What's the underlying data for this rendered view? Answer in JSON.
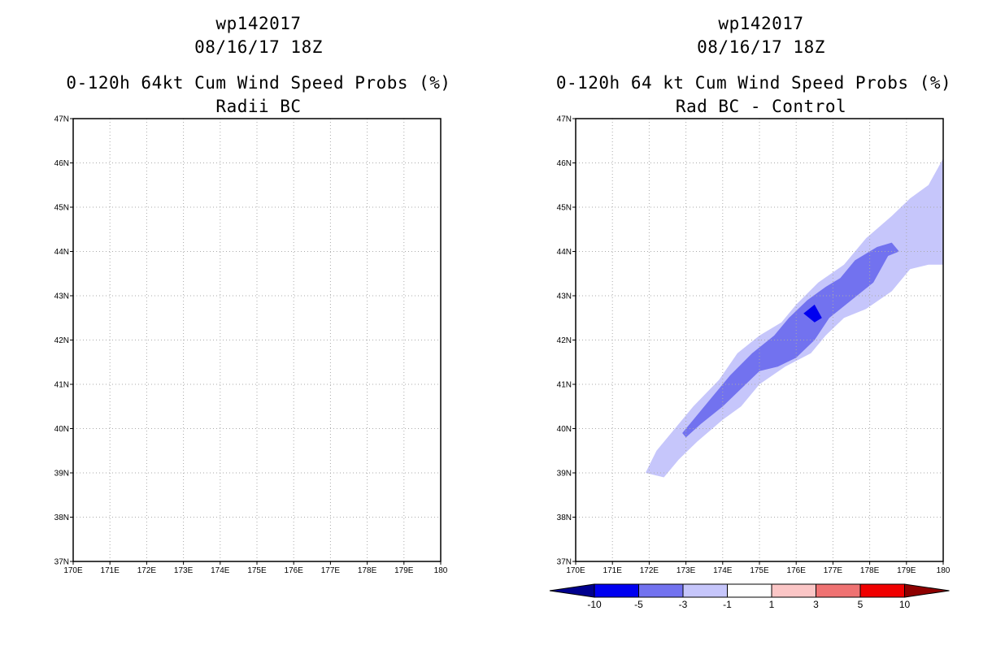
{
  "panels": [
    {
      "title_line1": "wp142017",
      "title_line2": "08/16/17 18Z",
      "title_line3": "0-120h 64kt Cum Wind Speed Probs (%)",
      "title_line4": "Radii BC"
    },
    {
      "title_line1": "wp142017",
      "title_line2": "08/16/17 18Z",
      "title_line3": "0-120h 64 kt Cum Wind Speed Probs (%)",
      "title_line4": "Rad BC - Control"
    }
  ],
  "colors": {
    "grid": "#aaaaaa",
    "frame": "#000000",
    "level_neg1_neg3": "#c6c6fb",
    "level_neg3_neg5": "#7272ef",
    "level_neg5_neg10": "#0000f0"
  },
  "chart_data": [
    {
      "type": "map",
      "title": "0-120h 64kt Cum Wind Speed Probs (%)",
      "subtitle": "Radii BC",
      "xlim": [
        170,
        180
      ],
      "ylim": [
        37,
        47
      ],
      "x_ticks": [
        "170E",
        "171E",
        "172E",
        "173E",
        "174E",
        "175E",
        "176E",
        "177E",
        "178E",
        "179E",
        "180"
      ],
      "y_ticks": [
        "37N",
        "38N",
        "39N",
        "40N",
        "41N",
        "42N",
        "43N",
        "44N",
        "45N",
        "46N",
        "47N"
      ],
      "grid": "dotted",
      "contours": []
    },
    {
      "type": "map",
      "title": "0-120h 64 kt Cum Wind Speed Probs (%)",
      "subtitle": "Rad BC - Control",
      "xlim": [
        170,
        180
      ],
      "ylim": [
        37,
        47
      ],
      "x_ticks": [
        "170E",
        "171E",
        "172E",
        "173E",
        "174E",
        "175E",
        "176E",
        "177E",
        "178E",
        "179E",
        "180"
      ],
      "y_ticks": [
        "37N",
        "38N",
        "39N",
        "40N",
        "41N",
        "42N",
        "43N",
        "44N",
        "45N",
        "46N",
        "47N"
      ],
      "grid": "dotted",
      "contours": [
        {
          "range": "-3 to -1",
          "color": "#c6c6fb",
          "polygon": [
            [
              171.9,
              39.0
            ],
            [
              172.2,
              39.5
            ],
            [
              172.7,
              40.0
            ],
            [
              173.2,
              40.5
            ],
            [
              173.9,
              41.1
            ],
            [
              174.4,
              41.7
            ],
            [
              175.0,
              42.1
            ],
            [
              175.6,
              42.4
            ],
            [
              176.0,
              42.8
            ],
            [
              176.6,
              43.3
            ],
            [
              177.3,
              43.7
            ],
            [
              177.9,
              44.3
            ],
            [
              178.6,
              44.8
            ],
            [
              179.1,
              45.2
            ],
            [
              179.6,
              45.5
            ],
            [
              180.0,
              46.1
            ],
            [
              180.0,
              43.7
            ],
            [
              179.6,
              43.7
            ],
            [
              179.1,
              43.6
            ],
            [
              178.6,
              43.1
            ],
            [
              177.9,
              42.7
            ],
            [
              177.3,
              42.5
            ],
            [
              176.8,
              42.1
            ],
            [
              176.4,
              41.7
            ],
            [
              175.7,
              41.4
            ],
            [
              175.0,
              41.0
            ],
            [
              174.5,
              40.5
            ],
            [
              174.0,
              40.2
            ],
            [
              173.3,
              39.7
            ],
            [
              172.8,
              39.3
            ],
            [
              172.4,
              38.9
            ]
          ]
        },
        {
          "range": "-5 to -3",
          "color": "#7272ef",
          "polygon": [
            [
              172.9,
              39.9
            ],
            [
              173.6,
              40.6
            ],
            [
              174.2,
              41.2
            ],
            [
              174.8,
              41.7
            ],
            [
              175.4,
              42.1
            ],
            [
              175.8,
              42.5
            ],
            [
              176.3,
              42.9
            ],
            [
              176.8,
              43.2
            ],
            [
              177.2,
              43.4
            ],
            [
              177.6,
              43.8
            ],
            [
              178.2,
              44.1
            ],
            [
              178.6,
              44.2
            ],
            [
              178.8,
              44.0
            ],
            [
              178.5,
              43.9
            ],
            [
              178.1,
              43.3
            ],
            [
              177.5,
              42.9
            ],
            [
              176.9,
              42.5
            ],
            [
              176.5,
              42.0
            ],
            [
              176.0,
              41.6
            ],
            [
              175.5,
              41.4
            ],
            [
              175.0,
              41.3
            ],
            [
              174.5,
              40.9
            ],
            [
              174.0,
              40.5
            ],
            [
              173.4,
              40.1
            ],
            [
              173.0,
              39.8
            ]
          ]
        },
        {
          "range": "-10 to -5",
          "color": "#0000f0",
          "polygon": [
            [
              176.2,
              42.6
            ],
            [
              176.5,
              42.8
            ],
            [
              176.7,
              42.5
            ],
            [
              176.5,
              42.4
            ]
          ]
        }
      ],
      "colorbar": {
        "levels": [
          "-10",
          "-5",
          "-3",
          "-1",
          "1",
          "3",
          "5",
          "10"
        ],
        "colors": [
          "#00008e",
          "#0000f0",
          "#7272ef",
          "#c6c6fb",
          "#ffffff",
          "#fbc6c6",
          "#ef7272",
          "#f00000",
          "#8e0000"
        ]
      }
    }
  ]
}
